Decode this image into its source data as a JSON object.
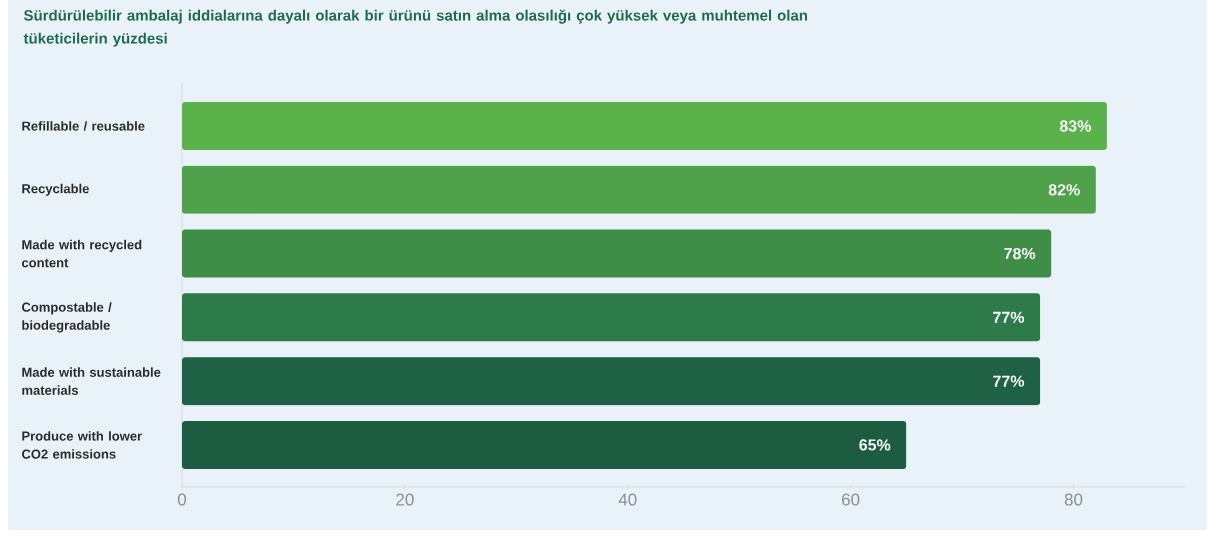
{
  "chart_data": {
    "type": "bar",
    "orientation": "horizontal",
    "title": "Sürdürülebilir ambalaj iddialarına dayalı olarak bir ürünü satın alma olasılığı çok yüksek veya muhtemel olan tüketicilerin yüzdesi",
    "categories": [
      "Refillable / reusable",
      "Recyclable",
      "Made with recycled content",
      "Compostable / biodegradable",
      "Made with sustainable materials",
      "Produce with lower CO2 emissions"
    ],
    "values": [
      83,
      82,
      78,
      77,
      77,
      65
    ],
    "value_labels": [
      "83%",
      "82%",
      "78%",
      "77%",
      "77%",
      "65%"
    ],
    "colors": [
      "#5bb14a",
      "#4fa24a",
      "#3f8e48",
      "#2e7b4a",
      "#1f6144",
      "#1c5c40"
    ],
    "xlim": [
      0,
      90
    ],
    "xticks": [
      0,
      20,
      40,
      60,
      80
    ],
    "grid": false
  }
}
